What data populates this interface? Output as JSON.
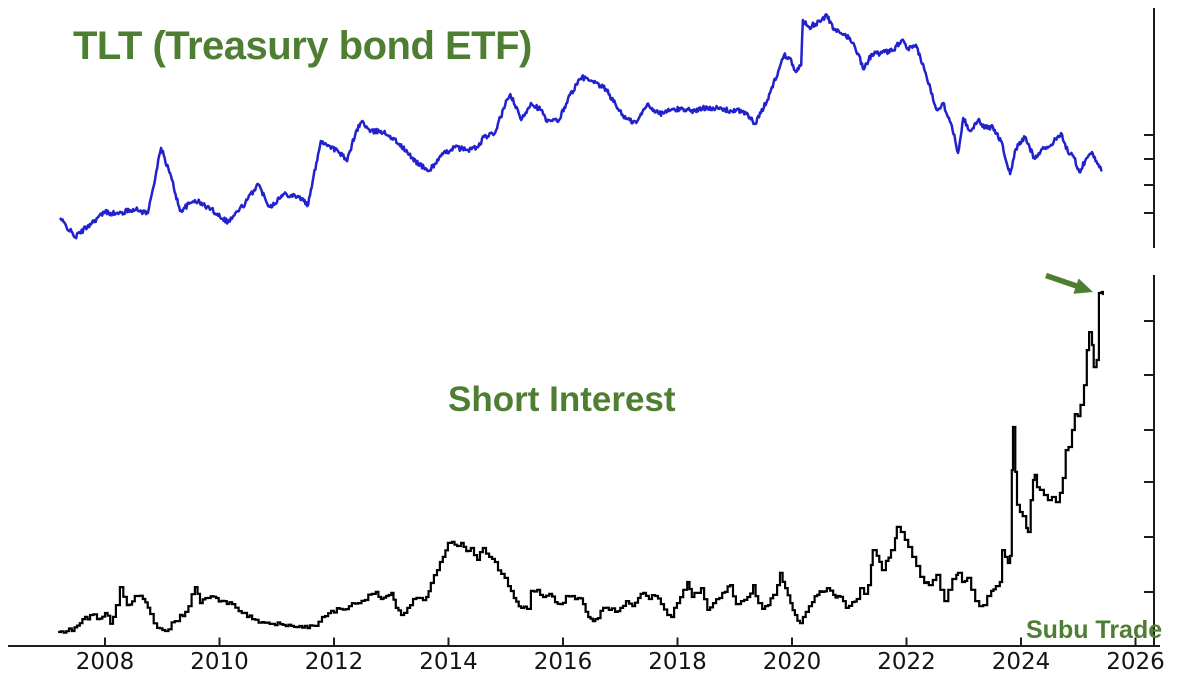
{
  "titles": {
    "top": "TLT (Treasury bond ETF)",
    "bottom": "Short Interest",
    "watermark": "Subu Trade"
  },
  "colors": {
    "green": "#4e7e32",
    "tlt_blue": "#2121ce",
    "short_interest_black": "#000000",
    "axis": "#1c1c1c",
    "tick_label": "#141414",
    "background": "#ffffff"
  },
  "x_axis": {
    "tick_years": [
      "2008",
      "2010",
      "2012",
      "2014",
      "2016",
      "2018",
      "2020",
      "2022",
      "2024",
      "2026"
    ]
  },
  "annotations": {
    "arrow": {
      "color": "#4e7e32",
      "points_to": "final short-interest spike in 2025",
      "at_year": 2025.4
    }
  },
  "chart_data": [
    {
      "type": "line",
      "title": "TLT (Treasury bond ETF)",
      "panel": "top",
      "color": "#2121ce",
      "xlabel": "",
      "ylabel": "",
      "x_unit": "year",
      "y_unit": "relative price (y axis unlabeled, normalized 0-100)",
      "x_range": [
        2007.2,
        2025.5
      ],
      "ylim": [
        0,
        100
      ],
      "grid": false,
      "legend": false,
      "points": [
        [
          2007.21,
          9.6
        ],
        [
          2007.48,
          1.3
        ],
        [
          2007.74,
          7.0
        ],
        [
          2008.0,
          12.3
        ],
        [
          2008.23,
          11.4
        ],
        [
          2008.49,
          13.6
        ],
        [
          2008.75,
          11.8
        ],
        [
          2008.98,
          40.4
        ],
        [
          2009.17,
          26.3
        ],
        [
          2009.31,
          12.7
        ],
        [
          2009.57,
          17.5
        ],
        [
          2009.85,
          13.6
        ],
        [
          2010.15,
          7.9
        ],
        [
          2010.45,
          16.2
        ],
        [
          2010.67,
          24.6
        ],
        [
          2010.88,
          14.5
        ],
        [
          2011.13,
          20.2
        ],
        [
          2011.37,
          19.3
        ],
        [
          2011.55,
          15.4
        ],
        [
          2011.69,
          33.8
        ],
        [
          2011.77,
          43.4
        ],
        [
          2011.93,
          41.2
        ],
        [
          2012.1,
          38.2
        ],
        [
          2012.23,
          34.6
        ],
        [
          2012.38,
          47.4
        ],
        [
          2012.49,
          52.2
        ],
        [
          2012.63,
          47.4
        ],
        [
          2012.82,
          47.8
        ],
        [
          2012.98,
          45.6
        ],
        [
          2013.14,
          42.1
        ],
        [
          2013.36,
          36.0
        ],
        [
          2013.57,
          31.6
        ],
        [
          2013.66,
          30.3
        ],
        [
          2013.87,
          36.8
        ],
        [
          2014.1,
          40.8
        ],
        [
          2014.31,
          39.5
        ],
        [
          2014.52,
          40.8
        ],
        [
          2014.62,
          45.2
        ],
        [
          2014.8,
          46.5
        ],
        [
          2014.99,
          59.2
        ],
        [
          2015.08,
          64.0
        ],
        [
          2015.27,
          52.6
        ],
        [
          2015.44,
          60.1
        ],
        [
          2015.62,
          57.0
        ],
        [
          2015.72,
          51.8
        ],
        [
          2015.93,
          52.6
        ],
        [
          2016.12,
          63.6
        ],
        [
          2016.33,
          71.5
        ],
        [
          2016.54,
          68.9
        ],
        [
          2016.75,
          66.2
        ],
        [
          2016.93,
          58.8
        ],
        [
          2017.1,
          53.1
        ],
        [
          2017.28,
          51.3
        ],
        [
          2017.47,
          59.6
        ],
        [
          2017.68,
          55.3
        ],
        [
          2017.89,
          57.0
        ],
        [
          2018.1,
          57.5
        ],
        [
          2018.31,
          56.6
        ],
        [
          2018.52,
          58.3
        ],
        [
          2018.73,
          57.5
        ],
        [
          2018.94,
          56.6
        ],
        [
          2019.15,
          56.6
        ],
        [
          2019.36,
          50.9
        ],
        [
          2019.57,
          61.4
        ],
        [
          2019.76,
          74.1
        ],
        [
          2019.86,
          81.1
        ],
        [
          2019.97,
          79.8
        ],
        [
          2020.07,
          73.7
        ],
        [
          2020.16,
          76.8
        ],
        [
          2020.19,
          96.5
        ],
        [
          2020.3,
          93.4
        ],
        [
          2020.4,
          94.7
        ],
        [
          2020.51,
          96.1
        ],
        [
          2020.61,
          98.7
        ],
        [
          2020.73,
          92.1
        ],
        [
          2020.87,
          90.4
        ],
        [
          2021.01,
          88.6
        ],
        [
          2021.17,
          81.1
        ],
        [
          2021.24,
          75.0
        ],
        [
          2021.4,
          81.6
        ],
        [
          2021.57,
          82.0
        ],
        [
          2021.75,
          82.9
        ],
        [
          2021.92,
          87.7
        ],
        [
          2022.01,
          83.8
        ],
        [
          2022.18,
          84.6
        ],
        [
          2022.32,
          74.1
        ],
        [
          2022.53,
          57.0
        ],
        [
          2022.64,
          60.1
        ],
        [
          2022.79,
          50.4
        ],
        [
          2022.9,
          38.2
        ],
        [
          2022.99,
          53.5
        ],
        [
          2023.11,
          47.8
        ],
        [
          2023.25,
          52.6
        ],
        [
          2023.39,
          49.1
        ],
        [
          2023.51,
          49.6
        ],
        [
          2023.65,
          43.4
        ],
        [
          2023.81,
          28.9
        ],
        [
          2023.91,
          39.9
        ],
        [
          2024.07,
          45.2
        ],
        [
          2024.23,
          36.0
        ],
        [
          2024.37,
          39.9
        ],
        [
          2024.51,
          41.2
        ],
        [
          2024.7,
          46.9
        ],
        [
          2024.82,
          38.6
        ],
        [
          2024.93,
          36.0
        ],
        [
          2025.02,
          29.8
        ],
        [
          2025.12,
          34.6
        ],
        [
          2025.24,
          38.6
        ],
        [
          2025.35,
          33.3
        ],
        [
          2025.42,
          30.7
        ]
      ]
    },
    {
      "type": "line",
      "style": "steps",
      "title": "Short Interest",
      "panel": "bottom",
      "color": "#000000",
      "xlabel": "",
      "ylabel": "",
      "x_unit": "year",
      "y_unit": "relative short interest (y axis unlabeled, normalized 0-100)",
      "x_range": [
        2007.2,
        2025.45
      ],
      "ylim": [
        0,
        100
      ],
      "grid": false,
      "legend": false,
      "points": [
        [
          2007.18,
          0
        ],
        [
          2007.42,
          0.3
        ],
        [
          2007.56,
          2.6
        ],
        [
          2007.74,
          5.0
        ],
        [
          2007.86,
          3.8
        ],
        [
          2008.0,
          5.6
        ],
        [
          2008.09,
          2.4
        ],
        [
          2008.19,
          7.9
        ],
        [
          2008.26,
          13.2
        ],
        [
          2008.38,
          7.9
        ],
        [
          2008.52,
          10.6
        ],
        [
          2008.66,
          9.7
        ],
        [
          2008.79,
          5.3
        ],
        [
          2008.91,
          1.2
        ],
        [
          2009.05,
          0.3
        ],
        [
          2009.22,
          3.2
        ],
        [
          2009.4,
          5.9
        ],
        [
          2009.57,
          13.2
        ],
        [
          2009.66,
          8.5
        ],
        [
          2009.8,
          10.0
        ],
        [
          2009.94,
          10.0
        ],
        [
          2010.08,
          9.1
        ],
        [
          2010.22,
          8.2
        ],
        [
          2010.39,
          5.6
        ],
        [
          2010.57,
          3.8
        ],
        [
          2010.74,
          2.9
        ],
        [
          2010.92,
          2.4
        ],
        [
          2011.11,
          2.1
        ],
        [
          2011.3,
          1.5
        ],
        [
          2011.49,
          1.8
        ],
        [
          2011.67,
          1.8
        ],
        [
          2011.79,
          4.4
        ],
        [
          2011.95,
          6.2
        ],
        [
          2012.1,
          6.8
        ],
        [
          2012.26,
          7.6
        ],
        [
          2012.42,
          8.5
        ],
        [
          2012.54,
          9.4
        ],
        [
          2012.66,
          11.2
        ],
        [
          2012.73,
          11.8
        ],
        [
          2012.82,
          9.7
        ],
        [
          2012.91,
          10.6
        ],
        [
          2013.0,
          11.5
        ],
        [
          2013.08,
          7.1
        ],
        [
          2013.17,
          5.0
        ],
        [
          2013.28,
          7.1
        ],
        [
          2013.38,
          9.7
        ],
        [
          2013.5,
          10.0
        ],
        [
          2013.61,
          10.3
        ],
        [
          2013.69,
          14.4
        ],
        [
          2013.8,
          18.2
        ],
        [
          2013.9,
          22.1
        ],
        [
          2013.99,
          26.2
        ],
        [
          2014.06,
          26.5
        ],
        [
          2014.15,
          25.3
        ],
        [
          2014.22,
          26.2
        ],
        [
          2014.31,
          23.8
        ],
        [
          2014.39,
          24.7
        ],
        [
          2014.5,
          21.2
        ],
        [
          2014.6,
          24.7
        ],
        [
          2014.71,
          22.1
        ],
        [
          2014.81,
          20.6
        ],
        [
          2014.92,
          17.1
        ],
        [
          2015.04,
          13.5
        ],
        [
          2015.14,
          10.0
        ],
        [
          2015.27,
          7.1
        ],
        [
          2015.37,
          6.8
        ],
        [
          2015.44,
          12.1
        ],
        [
          2015.55,
          12.4
        ],
        [
          2015.65,
          10.3
        ],
        [
          2015.76,
          11.2
        ],
        [
          2015.86,
          8.8
        ],
        [
          2015.95,
          8.2
        ],
        [
          2016.05,
          10.6
        ],
        [
          2016.16,
          10.6
        ],
        [
          2016.26,
          10.0
        ],
        [
          2016.35,
          8.2
        ],
        [
          2016.44,
          4.4
        ],
        [
          2016.52,
          3.2
        ],
        [
          2016.61,
          4.1
        ],
        [
          2016.7,
          7.1
        ],
        [
          2016.8,
          6.5
        ],
        [
          2016.91,
          5.9
        ],
        [
          2017.0,
          7.1
        ],
        [
          2017.1,
          9.1
        ],
        [
          2017.21,
          7.6
        ],
        [
          2017.31,
          10.0
        ],
        [
          2017.4,
          11.5
        ],
        [
          2017.5,
          9.7
        ],
        [
          2017.61,
          10.6
        ],
        [
          2017.71,
          8.2
        ],
        [
          2017.82,
          5.0
        ],
        [
          2017.89,
          4.4
        ],
        [
          2017.99,
          8.5
        ],
        [
          2018.1,
          12.4
        ],
        [
          2018.17,
          14.7
        ],
        [
          2018.25,
          10.3
        ],
        [
          2018.34,
          11.5
        ],
        [
          2018.41,
          12.9
        ],
        [
          2018.52,
          6.5
        ],
        [
          2018.62,
          8.5
        ],
        [
          2018.73,
          10.0
        ],
        [
          2018.83,
          11.8
        ],
        [
          2018.92,
          13.8
        ],
        [
          2019.02,
          8.2
        ],
        [
          2019.11,
          9.1
        ],
        [
          2019.22,
          10.3
        ],
        [
          2019.32,
          13.8
        ],
        [
          2019.41,
          8.5
        ],
        [
          2019.48,
          6.8
        ],
        [
          2019.58,
          7.9
        ],
        [
          2019.67,
          10.9
        ],
        [
          2019.74,
          13.8
        ],
        [
          2019.79,
          17.4
        ],
        [
          2019.88,
          12.9
        ],
        [
          2019.97,
          8.5
        ],
        [
          2020.05,
          5.0
        ],
        [
          2020.14,
          2.6
        ],
        [
          2020.24,
          5.9
        ],
        [
          2020.35,
          8.8
        ],
        [
          2020.44,
          10.9
        ],
        [
          2020.52,
          11.8
        ],
        [
          2020.61,
          12.9
        ],
        [
          2020.72,
          10.9
        ],
        [
          2020.8,
          10.6
        ],
        [
          2020.89,
          9.1
        ],
        [
          2020.94,
          7.1
        ],
        [
          2021.05,
          8.8
        ],
        [
          2021.13,
          9.7
        ],
        [
          2021.19,
          12.9
        ],
        [
          2021.26,
          11.2
        ],
        [
          2021.33,
          13.8
        ],
        [
          2021.38,
          19.7
        ],
        [
          2021.41,
          24.1
        ],
        [
          2021.48,
          22.4
        ],
        [
          2021.57,
          18.2
        ],
        [
          2021.64,
          20.9
        ],
        [
          2021.73,
          24.1
        ],
        [
          2021.8,
          27.6
        ],
        [
          2021.83,
          30.9
        ],
        [
          2021.9,
          29.4
        ],
        [
          2021.97,
          27.1
        ],
        [
          2022.03,
          25.0
        ],
        [
          2022.1,
          22.1
        ],
        [
          2022.17,
          19.4
        ],
        [
          2022.24,
          16.2
        ],
        [
          2022.31,
          14.4
        ],
        [
          2022.39,
          13.8
        ],
        [
          2022.46,
          15.3
        ],
        [
          2022.52,
          16.8
        ],
        [
          2022.59,
          12.4
        ],
        [
          2022.66,
          9.1
        ],
        [
          2022.73,
          12.4
        ],
        [
          2022.8,
          15.6
        ],
        [
          2022.87,
          16.8
        ],
        [
          2022.9,
          17.4
        ],
        [
          2022.97,
          14.7
        ],
        [
          2023.02,
          15.0
        ],
        [
          2023.06,
          15.9
        ],
        [
          2023.13,
          12.4
        ],
        [
          2023.2,
          9.1
        ],
        [
          2023.27,
          7.6
        ],
        [
          2023.34,
          7.9
        ],
        [
          2023.41,
          10.6
        ],
        [
          2023.48,
          12.1
        ],
        [
          2023.56,
          13.5
        ],
        [
          2023.63,
          14.7
        ],
        [
          2023.67,
          24.1
        ],
        [
          2023.72,
          22.1
        ],
        [
          2023.77,
          20.3
        ],
        [
          2023.81,
          22.4
        ],
        [
          2023.84,
          47.6
        ],
        [
          2023.86,
          60.3
        ],
        [
          2023.9,
          47.1
        ],
        [
          2023.93,
          37.4
        ],
        [
          2023.98,
          35.3
        ],
        [
          2024.03,
          34.1
        ],
        [
          2024.09,
          30.6
        ],
        [
          2024.12,
          29.4
        ],
        [
          2024.17,
          38.8
        ],
        [
          2024.21,
          44.7
        ],
        [
          2024.24,
          46.2
        ],
        [
          2024.28,
          42.6
        ],
        [
          2024.33,
          41.8
        ],
        [
          2024.4,
          40.3
        ],
        [
          2024.47,
          38.8
        ],
        [
          2024.54,
          39.7
        ],
        [
          2024.61,
          38.2
        ],
        [
          2024.68,
          40.9
        ],
        [
          2024.73,
          45.3
        ],
        [
          2024.78,
          53.5
        ],
        [
          2024.83,
          54.4
        ],
        [
          2024.89,
          59.4
        ],
        [
          2024.94,
          64.1
        ],
        [
          2024.99,
          63.5
        ],
        [
          2025.04,
          66.8
        ],
        [
          2025.1,
          72.6
        ],
        [
          2025.15,
          82.9
        ],
        [
          2025.19,
          88.2
        ],
        [
          2025.24,
          84.4
        ],
        [
          2025.27,
          77.9
        ],
        [
          2025.32,
          80.0
        ],
        [
          2025.36,
          99.7
        ],
        [
          2025.41,
          100
        ],
        [
          2025.43,
          99.1
        ]
      ]
    }
  ]
}
